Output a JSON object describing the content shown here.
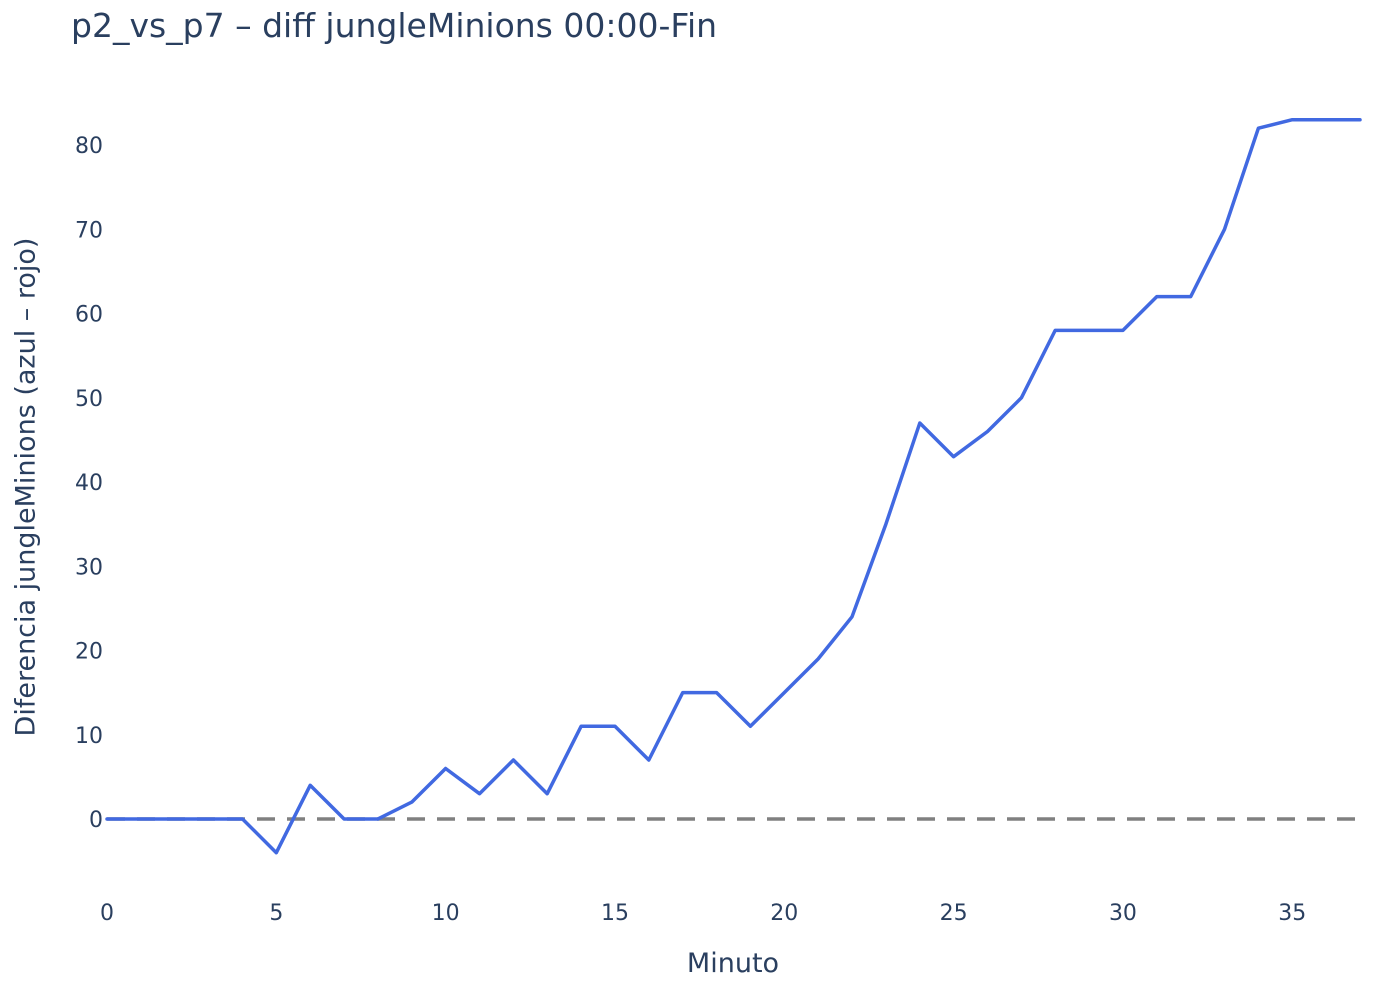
{
  "chart_data": {
    "type": "line",
    "title": "p2_vs_p7 – diff jungleMinions 00:00-Fin",
    "xlabel": "Minuto",
    "ylabel": "Diferencia jungleMinions (azul – rojo)",
    "xlim": [
      0,
      37
    ],
    "ylim": [
      -10,
      86
    ],
    "x_ticks": [
      0,
      5,
      10,
      15,
      20,
      25,
      30,
      35
    ],
    "y_ticks": [
      0,
      10,
      20,
      30,
      40,
      50,
      60,
      70,
      80
    ],
    "grid": false,
    "legend": "none",
    "x": [
      0,
      1,
      2,
      3,
      4,
      5,
      6,
      7,
      8,
      9,
      10,
      11,
      12,
      13,
      14,
      15,
      16,
      17,
      18,
      19,
      20,
      21,
      22,
      23,
      24,
      25,
      26,
      27,
      28,
      29,
      30,
      31,
      32,
      33,
      34,
      35,
      36,
      37
    ],
    "series": [
      {
        "color": "#4169e1",
        "values": [
          0,
          0,
          0,
          0,
          0,
          -4,
          4,
          0,
          0,
          2,
          6,
          3,
          7,
          3,
          11,
          11,
          7,
          15,
          15,
          11,
          15,
          19,
          24,
          35,
          47,
          43,
          46,
          50,
          58,
          58,
          58,
          62,
          62,
          70,
          82,
          83,
          83,
          83
        ]
      }
    ],
    "reference_line": {
      "y": 0,
      "style": "dashed",
      "color": "#808080"
    },
    "text_color": "#2a3f5f"
  }
}
